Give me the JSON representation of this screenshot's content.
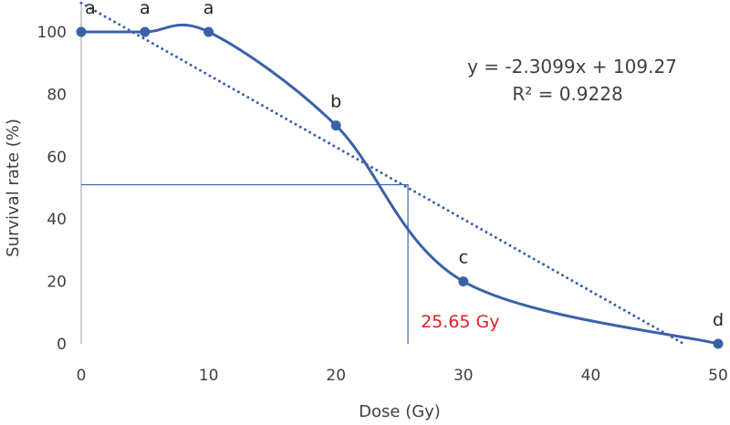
{
  "chart_data": {
    "type": "line",
    "xlabel": "Dose (Gy)",
    "ylabel": "Survival rate (%)",
    "xlim": [
      0,
      50
    ],
    "ylim": [
      0,
      100
    ],
    "xticks": [
      0,
      10,
      20,
      30,
      40,
      50
    ],
    "yticks": [
      0,
      20,
      40,
      60,
      80,
      100
    ],
    "grid": false,
    "series": [
      {
        "x": [
          0,
          5,
          10,
          20,
          30,
          50
        ],
        "y": [
          100,
          100,
          100,
          70,
          20,
          0
        ],
        "point_labels": [
          "a",
          "a",
          "a",
          "b",
          "c",
          "d"
        ],
        "color": "#3a62a8",
        "smooth": true
      }
    ],
    "trendline": {
      "type": "linear",
      "slope": -2.3099,
      "intercept": 109.27,
      "style": "dotted",
      "color": "#3a62a8",
      "equation": "y = -2.3099x + 109.27",
      "r_squared": "R² = 0.9228"
    },
    "reference": {
      "x": 25.65,
      "y": 51,
      "label": "25.65 Gy",
      "label_color": "#e0202a",
      "color": "#3a62a8"
    }
  }
}
